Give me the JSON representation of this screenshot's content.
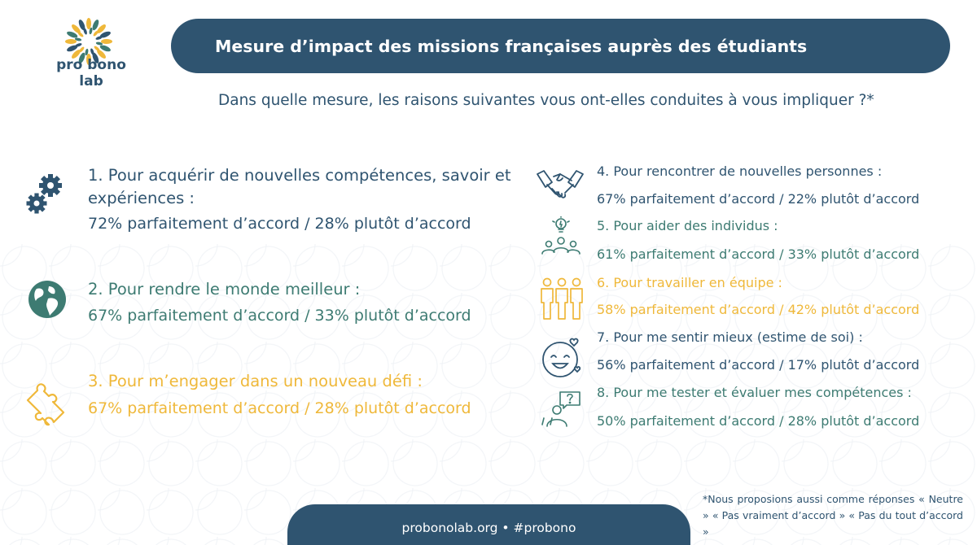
{
  "brand": {
    "logo_text": "pro bono lab"
  },
  "header": {
    "title": "Mesure d’impact des missions françaises auprès des étudiants"
  },
  "question": "Dans quelle mesure, les raisons suivantes vous ont-elles conduites à vous impliquer ?*",
  "left_items": [
    {
      "title_line1": "1. Pour acquérir de nouvelles compétences, savoir et",
      "title_line2": "expériences :",
      "stat": "72% parfaitement d’accord / 28% plutôt d’accord",
      "icon": "gears-icon",
      "color": "#2f5470"
    },
    {
      "title": "2. Pour rendre le monde meilleur :",
      "stat": "67% parfaitement d’accord / 33% plutôt d’accord",
      "icon": "globe-icon",
      "color": "#3d7b72"
    },
    {
      "title": "3. Pour m’engager dans un nouveau défi :",
      "stat": "67% parfaitement d’accord / 28% plutôt d’accord",
      "icon": "puzzle-icon",
      "color": "#efb83a"
    }
  ],
  "right_items": [
    {
      "title": "4. Pour rencontrer de nouvelles personnes :",
      "stat": "67% parfaitement d’accord / 22% plutôt d’accord",
      "icon": "handshake-icon",
      "color": "#2f5470"
    },
    {
      "title": "5. Pour aider des individus :",
      "stat": "61% parfaitement d’accord / 33% plutôt d’accord",
      "icon": "group-lightbulb-icon",
      "color": "#3d7b72"
    },
    {
      "title": "6. Pour travailler en équipe :",
      "stat": "58% parfaitement d’accord / 42% plutôt d’accord",
      "icon": "team-icon",
      "color": "#efb83a"
    },
    {
      "title": "7. Pour me sentir mieux (estime de soi) :",
      "stat": "56% parfaitement d’accord / 17% plutôt d’accord",
      "icon": "smiley-hearts-icon",
      "color": "#2f5470"
    },
    {
      "title": "8. Pour me tester et évaluer mes compétences :",
      "stat": "50% parfaitement d’accord / 28% plutôt d’accord",
      "icon": "person-question-icon",
      "color": "#3d7b72"
    }
  ],
  "footer": {
    "text": "probonolab.org  •  #probono"
  },
  "footnote": "*Nous proposions aussi comme réponses « Neutre » « Pas vraiment d’accord » « Pas du tout d’accord »"
}
